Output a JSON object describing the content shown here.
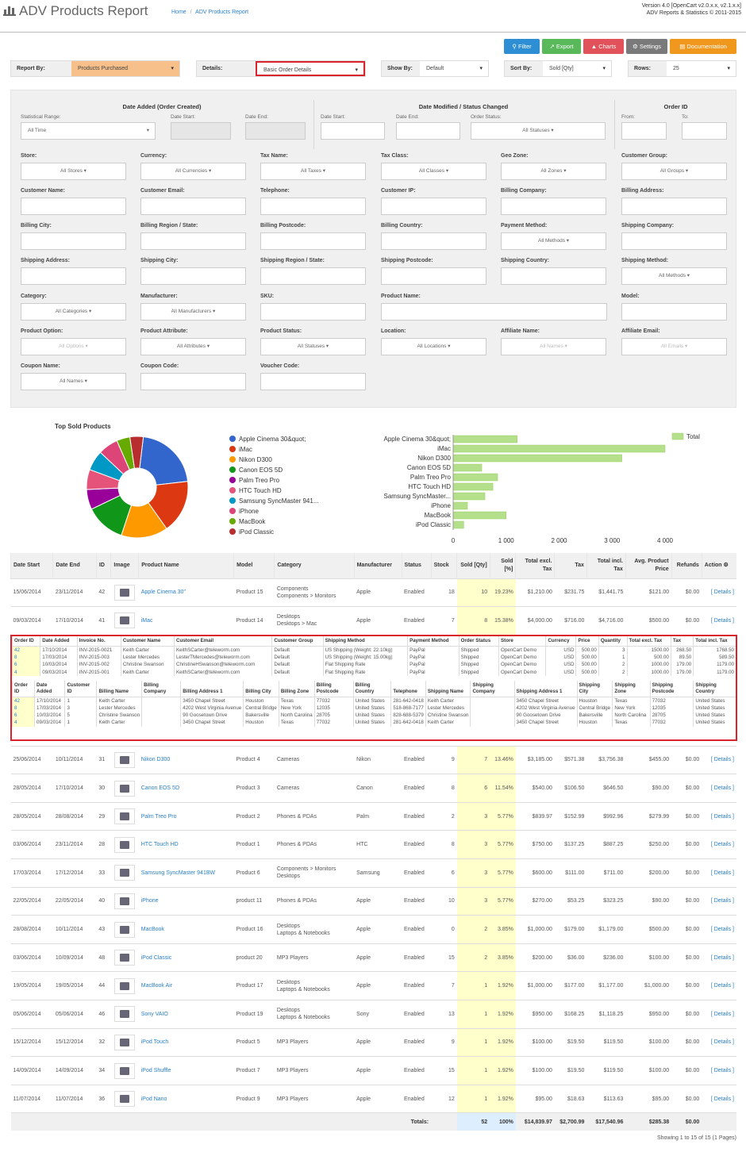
{
  "header": {
    "title": "ADV Products Report",
    "breadcrumb": [
      "Home",
      "/",
      "ADV Products Report"
    ],
    "version_line1": "Version 4.0 [OpenCart v2.0.x.x, v2.1.x.x]",
    "version_line2": "ADV Reports & Statistics © 2011-2015"
  },
  "toolbar": {
    "filter": "Filter",
    "export": "Export",
    "charts": "Charts",
    "settings": "Settings",
    "documentation": "Documentation",
    "colors": {
      "filter": "#2d8ed3",
      "export": "#59b95a",
      "charts": "#e2525a",
      "settings": "#7a7a7a",
      "documentation": "#f0981e"
    }
  },
  "selectors": {
    "report_by": {
      "label": "Report By:",
      "value": "Products Purchased"
    },
    "details": {
      "label": "Details:",
      "value": "Basic Order Details"
    },
    "show_by": {
      "label": "Show By:",
      "value": "Default"
    },
    "sort_by": {
      "label": "Sort By:",
      "value": "Sold [Qty]"
    },
    "rows": {
      "label": "Rows:",
      "value": "25"
    }
  },
  "filters": {
    "groups": {
      "date_added": "Date Added (Order Created)",
      "date_modified": "Date Modified / Status Changed",
      "order_id": "Order ID"
    },
    "statistical_range": {
      "label": "Statistical Range:",
      "value": "All Time"
    },
    "date_start": "Date Start:",
    "date_end": "Date End:",
    "order_status": {
      "label": "Order Status:",
      "value": "All Statuses ▾"
    },
    "from": "From:",
    "to": "To:",
    "rows": [
      [
        {
          "label": "Store:",
          "value": "All Stores ▾"
        },
        {
          "label": "Currency:",
          "value": "All Currencies ▾"
        },
        {
          "label": "Tax Name:",
          "value": "All Taxes ▾"
        },
        {
          "label": "Tax Class:",
          "value": "All Classes ▾"
        },
        {
          "label": "Geo Zone:",
          "value": "All Zones ▾"
        },
        {
          "label": "Customer Group:",
          "value": "All Groups ▾"
        }
      ],
      [
        {
          "label": "Customer Name:",
          "value": ""
        },
        {
          "label": "Customer Email:",
          "value": ""
        },
        {
          "label": "Telephone:",
          "value": ""
        },
        {
          "label": "Customer IP:",
          "value": ""
        },
        {
          "label": "Billing Company:",
          "value": ""
        },
        {
          "label": "Billing Address:",
          "value": ""
        }
      ],
      [
        {
          "label": "Billing City:",
          "value": ""
        },
        {
          "label": "Billing Region / State:",
          "value": ""
        },
        {
          "label": "Billing Postcode:",
          "value": ""
        },
        {
          "label": "Billing Country:",
          "value": ""
        },
        {
          "label": "Payment Method:",
          "value": "All Methods ▾"
        },
        {
          "label": "Shipping Company:",
          "value": ""
        }
      ],
      [
        {
          "label": "Shipping Address:",
          "value": ""
        },
        {
          "label": "Shipping City:",
          "value": ""
        },
        {
          "label": "Shipping Region / State:",
          "value": ""
        },
        {
          "label": "Shipping Postcode:",
          "value": ""
        },
        {
          "label": "Shipping Country:",
          "value": ""
        },
        {
          "label": "Shipping Method:",
          "value": "All Methods ▾"
        }
      ],
      [
        {
          "label": "Category:",
          "value": "All Categories ▾"
        },
        {
          "label": "Manufacturer:",
          "value": "All Manufacturers ▾"
        },
        {
          "label": "SKU:",
          "value": ""
        },
        {
          "label": "Product Name:",
          "value": "",
          "span": 2
        },
        {
          "label": "Model:",
          "value": ""
        }
      ],
      [
        {
          "label": "Product Option:",
          "value": "All Options ▾",
          "faint": true
        },
        {
          "label": "Product Attribute:",
          "value": "All Attributes ▾"
        },
        {
          "label": "Product Status:",
          "value": "All Statuses ▾"
        },
        {
          "label": "Location:",
          "value": "All Locations ▾"
        },
        {
          "label": "Affiliate Name:",
          "value": "All Names ▾",
          "faint": true
        },
        {
          "label": "Affiliate Email:",
          "value": "All Emails ▾",
          "faint": true
        }
      ],
      [
        {
          "label": "Coupon Name:",
          "value": "All Names ▾"
        },
        {
          "label": "Coupon Code:",
          "value": ""
        },
        {
          "label": "Voucher Code:",
          "value": ""
        }
      ]
    ]
  },
  "charts": {
    "pie_title": "Top Sold Products",
    "bar_legend": "Total",
    "bar_axis_ticks": [
      "0",
      "1 000",
      "2 000",
      "3 000",
      "4 000"
    ],
    "colors": [
      "#3366cc",
      "#dc3912",
      "#ff9900",
      "#109618",
      "#990099",
      "#e6537a",
      "#0099c6",
      "#dd4477",
      "#66aa00",
      "#b82e2e",
      "#316395"
    ],
    "bar_color": "#b5e08b"
  },
  "chart_data": [
    {
      "type": "pie",
      "title": "Top Sold Products",
      "categories": [
        "Apple Cinema 30&quot;",
        "iMac",
        "Nikon D300",
        "Canon EOS 5D",
        "Palm Treo Pro",
        "HTC Touch HD",
        "Samsung SyncMaster 941...",
        "iPhone",
        "MacBook",
        "iPod Classic"
      ],
      "values": [
        10,
        8,
        7,
        6,
        3,
        3,
        3,
        3,
        2,
        2
      ]
    },
    {
      "type": "bar",
      "orientation": "horizontal",
      "categories": [
        "Apple Cinema 30&quot;",
        "iMac",
        "Nikon D300",
        "Canon EOS 5D",
        "Palm Treo Pro",
        "HTC Touch HD",
        "Samsung SyncMaster...",
        "iPhone",
        "MacBook",
        "iPod Classic"
      ],
      "series": [
        {
          "name": "Total",
          "values": [
            1210,
            4000,
            3185,
            540,
            839.97,
            750,
            600,
            270,
            1000,
            200
          ]
        }
      ],
      "xlim": [
        0,
        4000
      ],
      "legend": "top-right"
    }
  ],
  "table": {
    "columns": [
      "Date Start",
      "Date End",
      "ID",
      "Image",
      "Product Name",
      "Model",
      "Category",
      "Manufacturer",
      "Status",
      "Stock",
      "Sold [Qty]",
      "Sold [%]",
      "Total excl. Tax",
      "Tax",
      "Total incl. Tax",
      "Avg. Product Price",
      "Refunds",
      "Action"
    ],
    "action_icon": "gear-icon",
    "rows": [
      {
        "start": "15/06/2014",
        "end": "23/11/2014",
        "id": "42",
        "name": "Apple Cinema 30\"",
        "model": "Product 15",
        "cat": [
          "Components",
          "Components  >  Monitors"
        ],
        "man": "Apple",
        "status": "Enabled",
        "stock": "18",
        "qty": "10",
        "pct": "19.23%",
        "excl": "$1,210.00",
        "tax": "$231.75",
        "incl": "$1,441.75",
        "avg": "$121.00",
        "ref": "$0.00",
        "action": "[ Details ]",
        "icon": "monitor-icon"
      },
      {
        "start": "09/03/2014",
        "end": "17/10/2014",
        "id": "41",
        "name": "iMac",
        "model": "Product 14",
        "cat": [
          "Desktops",
          "Desktops  >  Mac"
        ],
        "man": "Apple",
        "status": "Enabled",
        "stock": "7",
        "qty": "8",
        "pct": "15.38%",
        "excl": "$4,000.00",
        "tax": "$716.00",
        "incl": "$4,716.00",
        "avg": "$500.00",
        "ref": "$0.00",
        "action": "[ Details ]",
        "icon": "imac-icon"
      },
      {
        "start": "25/06/2014",
        "end": "10/11/2014",
        "id": "31",
        "name": "Nikon D300",
        "model": "Product 4",
        "cat": [
          "Cameras"
        ],
        "man": "Nikon",
        "status": "Enabled",
        "stock": "9",
        "qty": "7",
        "pct": "13.46%",
        "excl": "$3,185.00",
        "tax": "$571.38",
        "incl": "$3,756.38",
        "avg": "$455.00",
        "ref": "$0.00",
        "action": "[ Details ]",
        "icon": "camera-icon"
      },
      {
        "start": "28/05/2014",
        "end": "17/10/2014",
        "id": "30",
        "name": "Canon EOS 5D",
        "model": "Product 3",
        "cat": [
          "Cameras"
        ],
        "man": "Canon",
        "status": "Enabled",
        "stock": "8",
        "qty": "6",
        "pct": "11.54%",
        "excl": "$540.00",
        "tax": "$106.50",
        "incl": "$646.50",
        "avg": "$90.00",
        "ref": "$0.00",
        "action": "[ Details ]",
        "icon": "camera-icon"
      },
      {
        "start": "28/05/2014",
        "end": "28/08/2014",
        "id": "29",
        "name": "Palm Treo Pro",
        "model": "Product 2",
        "cat": [
          "Phones & PDAs"
        ],
        "man": "Palm",
        "status": "Enabled",
        "stock": "2",
        "stock_low": true,
        "qty": "3",
        "pct": "5.77%",
        "excl": "$839.97",
        "tax": "$152.99",
        "incl": "$992.96",
        "avg": "$279.99",
        "ref": "$0.00",
        "action": "[ Details ]",
        "icon": "phone-icon"
      },
      {
        "start": "03/06/2014",
        "end": "23/11/2014",
        "id": "28",
        "name": "HTC Touch HD",
        "model": "Product 1",
        "cat": [
          "Phones & PDAs"
        ],
        "man": "HTC",
        "status": "Enabled",
        "stock": "8",
        "qty": "3",
        "pct": "5.77%",
        "excl": "$750.00",
        "tax": "$137.25",
        "incl": "$887.25",
        "avg": "$250.00",
        "ref": "$0.00",
        "action": "[ Details ]",
        "icon": "phone-icon"
      },
      {
        "start": "17/03/2014",
        "end": "17/12/2014",
        "id": "33",
        "name": "Samsung SyncMaster 941BW",
        "model": "Product 6",
        "cat": [
          "Components  >  Monitors",
          "Desktops"
        ],
        "man": "Samsung",
        "status": "Enabled",
        "stock": "6",
        "qty": "3",
        "pct": "5.77%",
        "excl": "$600.00",
        "tax": "$111.00",
        "incl": "$711.00",
        "avg": "$200.00",
        "ref": "$0.00",
        "action": "[ Details ]",
        "icon": "monitor-icon"
      },
      {
        "start": "22/05/2014",
        "end": "22/05/2014",
        "id": "40",
        "name": "iPhone",
        "model": "product 11",
        "cat": [
          "Phones & PDAs"
        ],
        "man": "Apple",
        "status": "Enabled",
        "stock": "10",
        "qty": "3",
        "pct": "5.77%",
        "excl": "$270.00",
        "tax": "$53.25",
        "incl": "$323.25",
        "avg": "$90.00",
        "ref": "$0.00",
        "action": "[ Details ]",
        "icon": "phone-icon"
      },
      {
        "start": "28/08/2014",
        "end": "10/11/2014",
        "id": "43",
        "name": "MacBook",
        "model": "Product 16",
        "cat": [
          "Desktops",
          "Laptops & Notebooks"
        ],
        "man": "Apple",
        "status": "Enabled",
        "stock": "0",
        "stock_low": true,
        "qty": "2",
        "pct": "3.85%",
        "excl": "$1,000.00",
        "tax": "$179.00",
        "incl": "$1,179.00",
        "avg": "$500.00",
        "ref": "$0.00",
        "action": "[ Details ]",
        "icon": "laptop-icon"
      },
      {
        "start": "03/06/2014",
        "end": "10/09/2014",
        "id": "48",
        "name": "iPod Classic",
        "model": "product 20",
        "cat": [
          "MP3 Players"
        ],
        "man": "Apple",
        "status": "Enabled",
        "stock": "15",
        "qty": "2",
        "pct": "3.85%",
        "excl": "$200.00",
        "tax": "$36.00",
        "incl": "$236.00",
        "avg": "$100.00",
        "ref": "$0.00",
        "action": "[ Details ]",
        "icon": "ipod-icon"
      },
      {
        "start": "19/05/2014",
        "end": "19/05/2014",
        "id": "44",
        "name": "MacBook Air",
        "model": "Product 17",
        "cat": [
          "Desktops",
          "Laptops & Notebooks"
        ],
        "man": "Apple",
        "status": "Enabled",
        "stock": "7",
        "qty": "1",
        "pct": "1.92%",
        "excl": "$1,000.00",
        "tax": "$177.00",
        "incl": "$1,177.00",
        "avg": "$1,000.00",
        "ref": "$0.00",
        "action": "[ Details ]",
        "icon": "laptop-icon"
      },
      {
        "start": "05/06/2014",
        "end": "05/06/2014",
        "id": "46",
        "name": "Sony VAIO",
        "model": "Product 19",
        "cat": [
          "Desktops",
          "Laptops & Notebooks"
        ],
        "man": "Sony",
        "status": "Enabled",
        "stock": "13",
        "qty": "1",
        "pct": "1.92%",
        "excl": "$950.00",
        "tax": "$168.25",
        "incl": "$1,118.25",
        "avg": "$950.00",
        "ref": "$0.00",
        "action": "[ Details ]",
        "icon": "laptop-icon"
      },
      {
        "start": "15/12/2014",
        "end": "15/12/2014",
        "id": "32",
        "name": "iPod Touch",
        "model": "Product 5",
        "cat": [
          "MP3 Players"
        ],
        "man": "Apple",
        "status": "Enabled",
        "stock": "9",
        "qty": "1",
        "pct": "1.92%",
        "excl": "$100.00",
        "tax": "$19.50",
        "incl": "$119.50",
        "avg": "$100.00",
        "ref": "$0.00",
        "action": "[ Details ]",
        "icon": "ipod-icon"
      },
      {
        "start": "14/09/2014",
        "end": "14/09/2014",
        "id": "34",
        "name": "iPod Shuffle",
        "model": "Product 7",
        "cat": [
          "MP3 Players"
        ],
        "man": "Apple",
        "status": "Enabled",
        "stock": "15",
        "qty": "1",
        "pct": "1.92%",
        "excl": "$100.00",
        "tax": "$19.50",
        "incl": "$119.50",
        "avg": "$100.00",
        "ref": "$0.00",
        "action": "[ Details ]",
        "icon": "ipod-icon"
      },
      {
        "start": "11/07/2014",
        "end": "11/07/2014",
        "id": "36",
        "name": "iPod Nano",
        "model": "Product 9",
        "cat": [
          "MP3 Players"
        ],
        "man": "Apple",
        "status": "Enabled",
        "stock": "12",
        "qty": "1",
        "pct": "1.92%",
        "excl": "$95.00",
        "tax": "$18.63",
        "incl": "$113.63",
        "avg": "$95.00",
        "ref": "$0.00",
        "action": "[ Details ]",
        "icon": "ipod-icon"
      }
    ],
    "totals": {
      "label": "Totals:",
      "qty": "52",
      "pct": "100%",
      "excl": "$14,839.97",
      "tax": "$2,700.99",
      "incl": "$17,540.96",
      "avg": "$285.38",
      "ref": "$0.00"
    },
    "footer": "Showing 1 to 15 of 15 (1 Pages)"
  },
  "details": {
    "order_columns": [
      "Order ID",
      "Date Added",
      "Invoice No.",
      "Customer Name",
      "Customer Email",
      "Customer Group",
      "Shipping Method",
      "Payment Method",
      "Order Status",
      "Store",
      "Currency",
      "Price",
      "Quantity",
      "Total excl. Tax",
      "Tax",
      "Total incl. Tax"
    ],
    "orders": [
      [
        "42",
        "17/10/2014",
        "INV-2015-0021",
        "Keith Carter",
        "KeithSCarter@teleworm.com",
        "Default",
        "US Shipping (Weight: 22.10kg)",
        "PayPal",
        "Shipped",
        "OpenCart Demo",
        "USD",
        "500.00",
        "3",
        "1500.00",
        "268.50",
        "1768.50"
      ],
      [
        "8",
        "17/03/2014",
        "INV-2015-003",
        "Lester Mercedes",
        "LesterTMercedes@teleworm.com",
        "Default",
        "US Shipping (Weight: 15.00kg)",
        "PayPal",
        "Shipped",
        "OpenCart Demo",
        "USD",
        "500.00",
        "1",
        "500.00",
        "89.50",
        "589.50"
      ],
      [
        "6",
        "10/03/2014",
        "INV-2015-002",
        "Christine Swanson",
        "ChristineHSwanson@teleworm.com",
        "Default",
        "Flat Shipping Rate",
        "PayPal",
        "Shipped",
        "OpenCart Demo",
        "USD",
        "500.00",
        "2",
        "1000.00",
        "179.00",
        "1179.00"
      ],
      [
        "4",
        "09/03/2014",
        "INV-2015-001",
        "Keith Carter",
        "KeithSCarter@teleworm.com",
        "Default",
        "Flat Shipping Rate",
        "PayPal",
        "Shipped",
        "OpenCart Demo",
        "USD",
        "500.00",
        "2",
        "1000.00",
        "179.00",
        "1179.00"
      ]
    ],
    "address_columns": [
      "Order ID",
      "Date Added",
      "Customer ID",
      "Billing Name",
      "Billing Company",
      "Billing Address 1",
      "Billing City",
      "Billing Zone",
      "Billing Postcode",
      "Billing Country",
      "Telephone",
      "Shipping Name",
      "Shipping Company",
      "Shipping Address 1",
      "Shipping City",
      "Shipping Zone",
      "Shipping Postcode",
      "Shipping Country"
    ],
    "addresses": [
      [
        "42",
        "17/10/2014",
        "1",
        "Keith Carter",
        "",
        "3450 Chapel Street",
        "Houston",
        "Texas",
        "77032",
        "United States",
        "281-642-0418",
        "Keith Carter",
        "",
        "3450 Chapel Street",
        "Houston",
        "Texas",
        "77032",
        "United States"
      ],
      [
        "8",
        "17/03/2014",
        "3",
        "Lester Mercedes",
        "",
        "4202 West Virginia Avenue",
        "Central Bridge",
        "New York",
        "12035",
        "United States",
        "518-868-7177",
        "Lester Mercedes",
        "",
        "4202 West Virginia Avenue",
        "Central Bridge",
        "New York",
        "12035",
        "United States"
      ],
      [
        "6",
        "10/03/2014",
        "5",
        "Christine Swanson",
        "",
        "90 Goosetown Drive",
        "Bakersville",
        "North Carolina",
        "28705",
        "United States",
        "828-688-5379",
        "Christine Swanson",
        "",
        "90 Goosetown Drive",
        "Bakersville",
        "North Carolina",
        "28705",
        "United States"
      ],
      [
        "4",
        "09/03/2014",
        "1",
        "Keith Carter",
        "",
        "3450 Chapel Street",
        "Houston",
        "Texas",
        "77032",
        "United States",
        "281-642-0418",
        "Keith Carter",
        "",
        "3450 Chapel Street",
        "Houston",
        "Texas",
        "77032",
        "United States"
      ]
    ]
  }
}
